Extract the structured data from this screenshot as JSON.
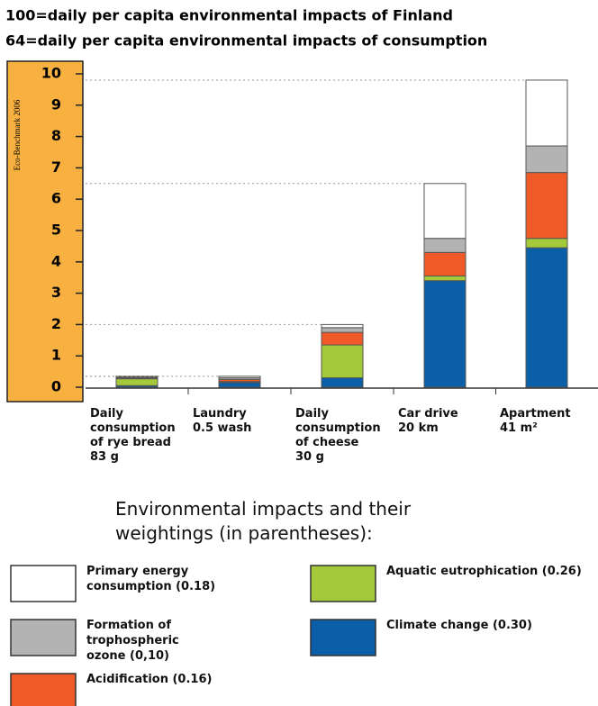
{
  "chart_data": {
    "type": "stacked_bar",
    "title": "100=daily per capita environmental impacts of Finland",
    "subtitle": "64=daily per capita environmental impacts of consumption",
    "axis_label": "Eco-Benchmark 2006",
    "categories": [
      "Daily\nconsumption\nof rye bread\n83 g",
      "Laundry\n0.5 wash",
      "Daily\nconsumption\nof cheese\n30 g",
      "Car drive\n20 km",
      "Apartment\n41 m²"
    ],
    "series": [
      {
        "name": "Climate change (0.30)",
        "color": "#0a5fa8",
        "values": [
          0.05,
          0.15,
          0.3,
          3.4,
          4.45
        ]
      },
      {
        "name": "Aquatic eutrophication (0.26)",
        "color": "#a4c93a",
        "values": [
          0.22,
          0.03,
          1.05,
          0.15,
          0.3
        ]
      },
      {
        "name": "Acidification (0.16)",
        "color": "#f05a28",
        "values": [
          0.03,
          0.07,
          0.4,
          0.75,
          2.1
        ]
      },
      {
        "name": "Formation of trophospheric ozone  (0,10)",
        "color": "#b3b3b3",
        "values": [
          0.03,
          0.05,
          0.15,
          0.45,
          0.85
        ]
      },
      {
        "name": "Primary energy consumption (0.18)",
        "color": "#ffffff",
        "values": [
          0.02,
          0.05,
          0.1,
          1.75,
          2.1
        ]
      }
    ],
    "legend_title": "Environmental impacts and their weightings (in parentheses):",
    "ylim": [
      0,
      10
    ],
    "yticks": [
      0,
      1,
      2,
      3,
      4,
      5,
      6,
      7,
      8,
      9,
      10
    ]
  }
}
